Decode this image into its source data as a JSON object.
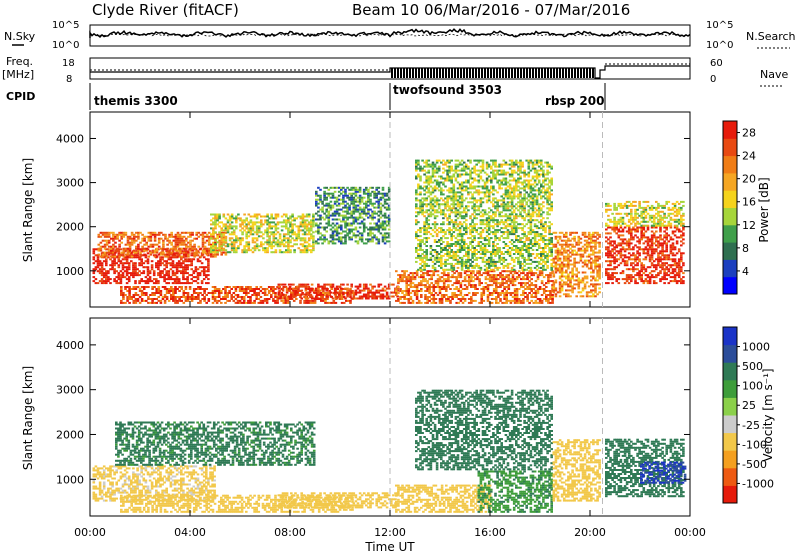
{
  "header": {
    "site_title": "Clyde River (fitACF)",
    "beam_title": "Beam 10  06/Mar/2016 - 07/Mar/2016"
  },
  "noise_panel": {
    "left_label": "N.Sky",
    "right_label": "N.Search",
    "left_ticks": [
      "10^5",
      "10^0"
    ],
    "right_ticks": [
      "10^5",
      "10^0"
    ]
  },
  "freq_panel": {
    "left_label_1": "Freq.",
    "left_label_2": "[MHz]",
    "right_label": "Nave",
    "left_ticks": [
      "18",
      "8"
    ],
    "right_ticks": [
      "60",
      "0"
    ]
  },
  "cpid": {
    "label": "CPID",
    "segments": [
      {
        "name": "themis 3300",
        "start": "00:00",
        "end": "12:00"
      },
      {
        "name": "twofsound 3503",
        "start": "12:00",
        "end": "20:30"
      },
      {
        "name": "rbsp 200",
        "start": "20:30",
        "end": "00:00"
      }
    ]
  },
  "colors": {
    "power_scale": [
      "#0000ff",
      "#1c3fbf",
      "#2f6f50",
      "#3f9f4a",
      "#a6d53a",
      "#f5d31c",
      "#f5a623",
      "#f07d16",
      "#e84a12",
      "#e61b0b"
    ],
    "velocity_scale": [
      "#e61b0b",
      "#ee5a12",
      "#f5a020",
      "#f2c84a",
      "#cccccc",
      "#8bd04a",
      "#3e9d3a",
      "#2f7a55",
      "#2b4d9a",
      "#1a33c7"
    ],
    "axis": "#000000",
    "ut_marker": "#bbbbbb"
  },
  "chart_data": [
    {
      "type": "heatmap",
      "title": "",
      "xlabel": "Time UT",
      "ylabel": "Slant Range [km]",
      "x_ticks": [
        "00:00",
        "04:00",
        "08:00",
        "12:00",
        "16:00",
        "20:00",
        "00:00"
      ],
      "y_ticks": [
        "1000",
        "2000",
        "3000",
        "4000"
      ],
      "xlim": [
        "00:00",
        "24:00"
      ],
      "ylim": [
        180,
        4600
      ],
      "colorbar": {
        "label": "Power [dB]",
        "ticks": [
          "4",
          "8",
          "12",
          "16",
          "20",
          "24",
          "28"
        ],
        "range": [
          0,
          30
        ]
      },
      "echo_regions": [
        {
          "t0": 0.1,
          "t1": 4.8,
          "r0": 700,
          "r1": 1500,
          "value": 28
        },
        {
          "t0": 0.3,
          "t1": 5.5,
          "r0": 1300,
          "r1": 1900,
          "value": 22
        },
        {
          "t0": 4.8,
          "t1": 9.0,
          "r0": 1400,
          "r1": 2300,
          "value": 14
        },
        {
          "t0": 1.2,
          "t1": 10.5,
          "r0": 250,
          "r1": 650,
          "value": 24
        },
        {
          "t0": 7.5,
          "t1": 12.3,
          "r0": 350,
          "r1": 700,
          "value": 26
        },
        {
          "t0": 9.0,
          "t1": 12.0,
          "r0": 1600,
          "r1": 2900,
          "value": 8
        },
        {
          "t0": 12.2,
          "t1": 18.5,
          "r0": 250,
          "r1": 1000,
          "value": 22
        },
        {
          "t0": 13.0,
          "t1": 18.5,
          "r0": 1000,
          "r1": 3500,
          "value": 12
        },
        {
          "t0": 18.5,
          "t1": 20.4,
          "r0": 400,
          "r1": 1900,
          "value": 20
        },
        {
          "t0": 20.6,
          "t1": 23.8,
          "r0": 700,
          "r1": 2000,
          "value": 26
        },
        {
          "t0": 20.6,
          "t1": 23.8,
          "r0": 2000,
          "r1": 2600,
          "value": 14
        }
      ]
    },
    {
      "type": "heatmap",
      "title": "",
      "xlabel": "Time UT",
      "ylabel": "Slant Range [km]",
      "x_ticks": [
        "00:00",
        "04:00",
        "08:00",
        "12:00",
        "16:00",
        "20:00",
        "00:00"
      ],
      "y_ticks": [
        "1000",
        "2000",
        "3000",
        "4000"
      ],
      "xlim": [
        "00:00",
        "24:00"
      ],
      "ylim": [
        180,
        4600
      ],
      "colorbar": {
        "label": "Velocity [m s⁻¹]",
        "ticks": [
          "1000",
          "500",
          "100",
          "25",
          "-25",
          "-100",
          "-500",
          "-1000"
        ]
      },
      "echo_regions": [
        {
          "t0": 0.1,
          "t1": 5.0,
          "r0": 500,
          "r1": 1300,
          "value": -150
        },
        {
          "t0": 1.0,
          "t1": 9.0,
          "r0": 1300,
          "r1": 2300,
          "value": 150
        },
        {
          "t0": 1.2,
          "t1": 10.5,
          "r0": 250,
          "r1": 650,
          "value": -300
        },
        {
          "t0": 7.5,
          "t1": 12.3,
          "r0": 350,
          "r1": 700,
          "value": -200
        },
        {
          "t0": 12.2,
          "t1": 16.0,
          "r0": 250,
          "r1": 900,
          "value": -300
        },
        {
          "t0": 15.5,
          "t1": 18.5,
          "r0": 250,
          "r1": 1200,
          "value": 80
        },
        {
          "t0": 13.0,
          "t1": 18.5,
          "r0": 1200,
          "r1": 3000,
          "value": 300
        },
        {
          "t0": 18.5,
          "t1": 20.4,
          "r0": 500,
          "r1": 1900,
          "value": -300
        },
        {
          "t0": 20.6,
          "t1": 23.8,
          "r0": 600,
          "r1": 1900,
          "value": 300
        },
        {
          "t0": 22.0,
          "t1": 23.8,
          "r0": 900,
          "r1": 1400,
          "value": 1000
        }
      ]
    }
  ]
}
